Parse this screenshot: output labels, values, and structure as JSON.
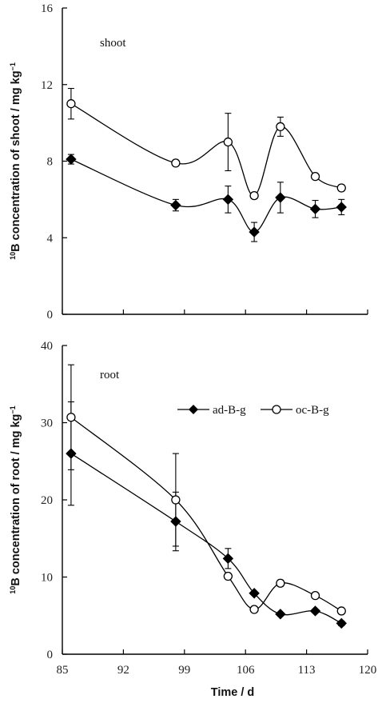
{
  "chart_data": [
    {
      "type": "line",
      "panel_label": "shoot",
      "ylabel_sup": "10",
      "ylabel_main": "B concentration of shoot / mg kg",
      "ylabel_exp": "−1",
      "ylim": [
        0,
        16
      ],
      "yticks": [
        "0",
        "4",
        "8",
        "12",
        "16"
      ],
      "xlim": [
        85,
        120
      ],
      "series": [
        {
          "name": "ad-B-g",
          "marker": "filled-diamond",
          "x": [
            86,
            98,
            104,
            107,
            110,
            114,
            117
          ],
          "y": [
            8.1,
            5.7,
            6.0,
            4.3,
            6.1,
            5.5,
            5.6
          ],
          "err": [
            0.25,
            0.3,
            0.7,
            0.5,
            0.8,
            0.45,
            0.4
          ]
        },
        {
          "name": "oc-B-g",
          "marker": "open-circle",
          "x": [
            86,
            98,
            104,
            107,
            110,
            114,
            117
          ],
          "y": [
            11.0,
            7.9,
            9.0,
            6.2,
            9.8,
            7.2,
            6.6
          ],
          "err": [
            0.8,
            0.15,
            1.5,
            0.15,
            0.5,
            0.1,
            0.15
          ]
        }
      ]
    },
    {
      "type": "line",
      "panel_label": "root",
      "ylabel_sup": "10",
      "ylabel_main": "B concentration of root / mg kg",
      "ylabel_exp": "−1",
      "xlabel": "Time / d",
      "ylim": [
        0,
        40
      ],
      "yticks": [
        "0",
        "10",
        "20",
        "30",
        "40"
      ],
      "xlim": [
        85,
        120
      ],
      "xticks": [
        "85",
        "92",
        "99",
        "106",
        "113",
        "120"
      ],
      "legend": [
        "ad-B-g",
        "oc-B-g"
      ],
      "series": [
        {
          "name": "ad-B-g",
          "marker": "filled-diamond",
          "x": [
            86,
            98,
            104,
            107,
            110,
            114,
            117
          ],
          "y": [
            26.0,
            17.2,
            12.4,
            7.9,
            5.2,
            5.6,
            4.0
          ],
          "err": [
            6.7,
            3.8,
            1.3,
            0.2,
            0.2,
            0.2,
            0.3
          ]
        },
        {
          "name": "oc-B-g",
          "marker": "open-circle",
          "x": [
            86,
            98,
            104,
            107,
            110,
            114,
            117
          ],
          "y": [
            30.7,
            20.0,
            10.1,
            5.8,
            9.2,
            7.6,
            5.6
          ],
          "err": [
            6.8,
            6.0,
            0.3,
            0.2,
            0.4,
            0.3,
            0.2
          ]
        }
      ]
    }
  ]
}
